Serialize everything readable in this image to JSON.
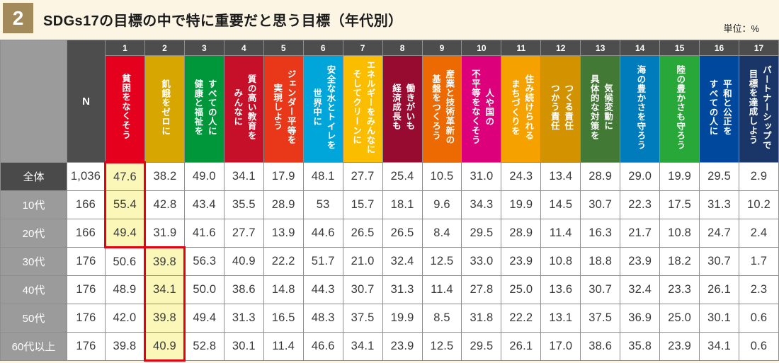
{
  "header": {
    "section_number": "2",
    "title": "SDGs17の目標の中で特に重要だと思う目標（年代別）",
    "unit_label": "単位：%",
    "badge_color": "#A28A5B",
    "background_color": "#FCF5E4"
  },
  "table": {
    "n_header": "N",
    "goals": [
      {
        "num": "1",
        "label": "貧困をなくそう",
        "color": "#E5001E"
      },
      {
        "num": "2",
        "label": "飢餓をゼロに",
        "color": "#D7A600"
      },
      {
        "num": "3",
        "label": "すべての人に\n健康と福祉を",
        "color": "#00973B"
      },
      {
        "num": "4",
        "label": "質の高い教育を\nみんなに",
        "color": "#C60F28"
      },
      {
        "num": "5",
        "label": "ジェンダー平等を\n実現しよう",
        "color": "#E83819"
      },
      {
        "num": "6",
        "label": "安全な水とトイレを\n世界中に",
        "color": "#00A6D9"
      },
      {
        "num": "7",
        "label": "エネルギーをみんなに\nそしてクリーンに",
        "color": "#FABD00"
      },
      {
        "num": "8",
        "label": "働きがいも\n経済成長も",
        "color": "#970B31"
      },
      {
        "num": "9",
        "label": "産業と技術革新の\n基盤をつくろう",
        "color": "#ED6A02"
      },
      {
        "num": "10",
        "label": "人や国の\n不平等をなくそう",
        "color": "#DC007A"
      },
      {
        "num": "11",
        "label": "住み続けられる\nまちづくりを",
        "color": "#F5A200"
      },
      {
        "num": "12",
        "label": "つくる責任\nつかう責任",
        "color": "#D39200"
      },
      {
        "num": "13",
        "label": "気候変動に\n具体的な対策を",
        "color": "#427935"
      },
      {
        "num": "14",
        "label": "海の豊かさを守ろう",
        "color": "#007CBC"
      },
      {
        "num": "15",
        "label": "陸の豊かさも守ろう",
        "color": "#28A838"
      },
      {
        "num": "16",
        "label": "平和と公正を\nすべての人に",
        "color": "#00489D"
      },
      {
        "num": "17",
        "label": "パートナーシップで\n目標を達成しよう",
        "color": "#1A3668"
      }
    ],
    "rows": [
      {
        "label": "全体",
        "n": "1,036",
        "emphasis": true,
        "values": [
          "47.6",
          "38.2",
          "49.0",
          "34.1",
          "17.9",
          "48.1",
          "27.7",
          "25.4",
          "10.5",
          "31.0",
          "24.3",
          "13.4",
          "28.9",
          "29.0",
          "19.9",
          "29.5",
          "2.9"
        ]
      },
      {
        "label": "10代",
        "n": "166",
        "emphasis": false,
        "values": [
          "55.4",
          "42.8",
          "43.4",
          "35.5",
          "28.9",
          "53",
          "15.7",
          "18.1",
          "9.6",
          "34.3",
          "19.9",
          "14.5",
          "30.7",
          "22.3",
          "17.5",
          "31.3",
          "10.2"
        ]
      },
      {
        "label": "20代",
        "n": "166",
        "emphasis": false,
        "values": [
          "49.4",
          "31.9",
          "41.6",
          "27.7",
          "13.9",
          "44.6",
          "26.5",
          "26.5",
          "8.4",
          "29.5",
          "28.9",
          "11.4",
          "16.3",
          "21.7",
          "10.8",
          "24.7",
          "2.4"
        ]
      },
      {
        "label": "30代",
        "n": "176",
        "emphasis": false,
        "values": [
          "50.6",
          "39.8",
          "56.3",
          "40.9",
          "22.2",
          "51.7",
          "21.0",
          "32.4",
          "12.5",
          "33.0",
          "23.9",
          "10.8",
          "18.8",
          "23.9",
          "18.2",
          "30.7",
          "1.7"
        ]
      },
      {
        "label": "40代",
        "n": "176",
        "emphasis": false,
        "values": [
          "48.9",
          "34.1",
          "50.0",
          "38.6",
          "14.8",
          "44.3",
          "30.7",
          "31.3",
          "11.4",
          "27.8",
          "25.0",
          "13.6",
          "30.7",
          "32.4",
          "23.3",
          "26.1",
          "2.3"
        ]
      },
      {
        "label": "50代",
        "n": "176",
        "emphasis": false,
        "values": [
          "42.0",
          "39.8",
          "49.4",
          "31.3",
          "16.5",
          "48.3",
          "37.5",
          "19.9",
          "8.5",
          "31.8",
          "22.2",
          "13.1",
          "37.5",
          "36.9",
          "25.0",
          "30.1",
          "0.6"
        ]
      },
      {
        "label": "60代以上",
        "n": "176",
        "emphasis": false,
        "values": [
          "39.8",
          "40.9",
          "52.8",
          "30.1",
          "11.4",
          "46.6",
          "34.1",
          "23.9",
          "12.5",
          "29.5",
          "26.1",
          "17.0",
          "38.6",
          "35.8",
          "23.9",
          "34.1",
          "0.6"
        ]
      }
    ],
    "highlights": [
      {
        "goal_index": 0,
        "row_indexes": [
          0,
          1,
          2
        ]
      },
      {
        "goal_index": 1,
        "row_indexes": [
          3,
          4,
          5,
          6
        ]
      }
    ],
    "highlight_style": {
      "fill": "#FBF7B9",
      "border": "#E60012"
    }
  },
  "chart_data": {
    "type": "table",
    "title": "SDGs17の目標の中で特に重要だと思う目標（年代別）",
    "unit": "%",
    "columns": [
      "N",
      "1 貧困をなくそう",
      "2 飢餓をゼロに",
      "3 すべての人に健康と福祉を",
      "4 質の高い教育をみんなに",
      "5 ジェンダー平等を実現しよう",
      "6 安全な水とトイレを世界中に",
      "7 エネルギーをみんなにそしてクリーンに",
      "8 働きがいも経済成長も",
      "9 産業と技術革新の基盤をつくろう",
      "10 人や国の不平等をなくそう",
      "11 住み続けられるまちづくりを",
      "12 つくる責任つかう責任",
      "13 気候変動に具体的な対策を",
      "14 海の豊かさを守ろう",
      "15 陸の豊かさも守ろう",
      "16 平和と公正をすべての人に",
      "17 パートナーシップで目標を達成しよう"
    ],
    "rows": [
      {
        "group": "全体",
        "n": 1036,
        "values": [
          47.6,
          38.2,
          49.0,
          34.1,
          17.9,
          48.1,
          27.7,
          25.4,
          10.5,
          31.0,
          24.3,
          13.4,
          28.9,
          29.0,
          19.9,
          29.5,
          2.9
        ]
      },
      {
        "group": "10代",
        "n": 166,
        "values": [
          55.4,
          42.8,
          43.4,
          35.5,
          28.9,
          53,
          15.7,
          18.1,
          9.6,
          34.3,
          19.9,
          14.5,
          30.7,
          22.3,
          17.5,
          31.3,
          10.2
        ]
      },
      {
        "group": "20代",
        "n": 166,
        "values": [
          49.4,
          31.9,
          41.6,
          27.7,
          13.9,
          44.6,
          26.5,
          26.5,
          8.4,
          29.5,
          28.9,
          11.4,
          16.3,
          21.7,
          10.8,
          24.7,
          2.4
        ]
      },
      {
        "group": "30代",
        "n": 176,
        "values": [
          50.6,
          39.8,
          56.3,
          40.9,
          22.2,
          51.7,
          21.0,
          32.4,
          12.5,
          33.0,
          23.9,
          10.8,
          18.8,
          23.9,
          18.2,
          30.7,
          1.7
        ]
      },
      {
        "group": "40代",
        "n": 176,
        "values": [
          48.9,
          34.1,
          50.0,
          38.6,
          14.8,
          44.3,
          30.7,
          31.3,
          11.4,
          27.8,
          25.0,
          13.6,
          30.7,
          32.4,
          23.3,
          26.1,
          2.3
        ]
      },
      {
        "group": "50代",
        "n": 176,
        "values": [
          42.0,
          39.8,
          49.4,
          31.3,
          16.5,
          48.3,
          37.5,
          19.9,
          8.5,
          31.8,
          22.2,
          13.1,
          37.5,
          36.9,
          25.0,
          30.1,
          0.6
        ]
      },
      {
        "group": "60代以上",
        "n": 176,
        "values": [
          39.8,
          40.9,
          52.8,
          30.1,
          11.4,
          46.6,
          34.1,
          23.9,
          12.5,
          29.5,
          26.1,
          17.0,
          38.6,
          35.8,
          23.9,
          34.1,
          0.6
        ]
      }
    ],
    "highlighted_cells": [
      {
        "group": "全体",
        "column": "1 貧困をなくそう",
        "value": 47.6
      },
      {
        "group": "10代",
        "column": "1 貧困をなくそう",
        "value": 55.4
      },
      {
        "group": "20代",
        "column": "1 貧困をなくそう",
        "value": 49.4
      },
      {
        "group": "30代",
        "column": "2 飢餓をゼロに",
        "value": 39.8
      },
      {
        "group": "40代",
        "column": "2 飢餓をゼロに",
        "value": 34.1
      },
      {
        "group": "50代",
        "column": "2 飢餓をゼロに",
        "value": 39.8
      },
      {
        "group": "60代以上",
        "column": "2 飢餓をゼロに",
        "value": 40.9
      }
    ]
  }
}
